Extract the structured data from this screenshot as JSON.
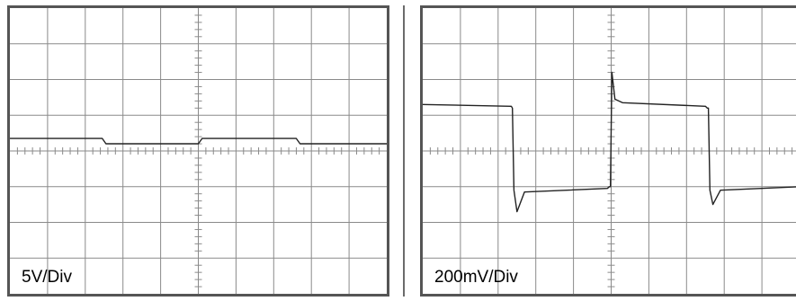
{
  "chart_data": [
    {
      "type": "line",
      "title": "",
      "scale_label": "5V/Div",
      "grid": true,
      "x_divisions": 10,
      "y_divisions": 8,
      "xlim": [
        0,
        10
      ],
      "ylim": [
        -4,
        4
      ],
      "series": [
        {
          "x": [
            0,
            2.45,
            2.55,
            5.0,
            5.1,
            7.6,
            7.7,
            10
          ],
          "y": [
            0.35,
            0.35,
            0.2,
            0.2,
            0.35,
            0.35,
            0.2,
            0.2
          ]
        }
      ]
    },
    {
      "type": "line",
      "title": "",
      "scale_label": "200mV/Div",
      "grid": true,
      "x_divisions": 10,
      "y_divisions": 8,
      "xlim": [
        0,
        10
      ],
      "ylim": [
        -4,
        4
      ],
      "series": [
        {
          "x": [
            0,
            2.35,
            2.38,
            2.42,
            2.5,
            2.7,
            4.9,
            4.95,
            4.98,
            5.02,
            5.1,
            5.3,
            7.5,
            7.55,
            7.58,
            7.62,
            7.7,
            7.9,
            10
          ],
          "y": [
            1.3,
            1.25,
            1.2,
            -1.1,
            -1.7,
            -1.15,
            -1.05,
            -1.0,
            -1.0,
            2.2,
            1.45,
            1.35,
            1.25,
            1.2,
            1.2,
            -1.1,
            -1.5,
            -1.1,
            -1.0
          ]
        }
      ]
    }
  ]
}
